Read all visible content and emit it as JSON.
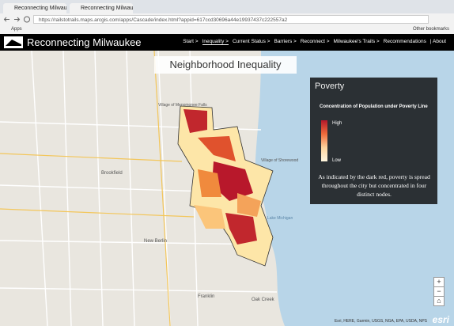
{
  "browser": {
    "tabs": [
      "Reconnecting Milwauke",
      "Reconnecting Milwauke"
    ],
    "url": "https://railstotrails.maps.arcgis.com/apps/Cascade/index.html?appid=617ccd30696a44e19937437c222557a2",
    "bookmarks": [
      "Apps",
      "Other bookmarks"
    ]
  },
  "header": {
    "title": "Reconnecting Milwaukee",
    "nav": [
      "Start >",
      "Inequality >",
      "Current Status >",
      "Barriers >",
      "Reconnect >",
      "Milwaukee's Trails >",
      "Recommendations",
      "| About"
    ]
  },
  "section_title": "Neighborhood Inequality",
  "legend": {
    "title": "Poverty",
    "subtitle": "Concentration of Population under Poverty Line",
    "high": "High",
    "low": "Low",
    "description": "As indicated by the dark red, poverty is spread throughout the city but concentrated in four distinct nodes."
  },
  "map_labels": [
    "Village of Menomonee Falls",
    "Brookfield",
    "New Berlin",
    "Franklin",
    "Oak Creek",
    "Lake Michigan",
    "Village of Shorewood"
  ],
  "attribution": "Esri, HERE, Garmin, USGS, NGA, EPA, USDA, NPS",
  "logo": "esri"
}
